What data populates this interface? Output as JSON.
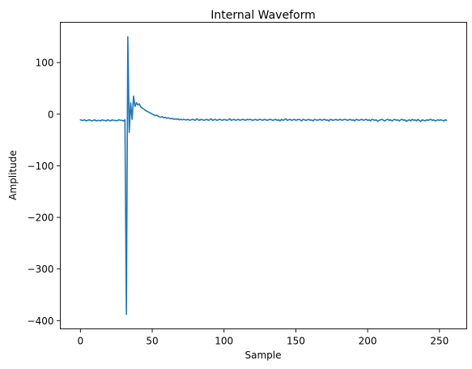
{
  "chart_data": {
    "type": "line",
    "title": "Internal Waveform",
    "xlabel": "Sample",
    "ylabel": "Amplitude",
    "xlim": [
      -14,
      269
    ],
    "ylim": [
      -416,
      178
    ],
    "grid": false,
    "legend": "none",
    "x_ticks": [
      0,
      50,
      100,
      150,
      200,
      250
    ],
    "y_ticks": [
      100,
      0,
      -100,
      -200,
      -300,
      -400
    ],
    "x_tick_labels": [
      "0",
      "50",
      "100",
      "150",
      "200",
      "250"
    ],
    "y_tick_labels": [
      "100",
      "0",
      "−100",
      "−200",
      "−300",
      "−400"
    ],
    "colors": {
      "series": "#1f77b4"
    },
    "series": [
      {
        "x_start": 0,
        "x_step": 1,
        "values": [
          -11,
          -12,
          -12,
          -11,
          -13,
          -12,
          -11,
          -12,
          -13,
          -12,
          -11,
          -13,
          -12,
          -12,
          -13,
          -11,
          -12,
          -12,
          -13,
          -11,
          -12,
          -13,
          -11,
          -12,
          -12,
          -13,
          -12,
          -11,
          -12,
          -12,
          -13,
          -11,
          -388,
          150,
          -35,
          22,
          -10,
          35,
          15,
          22,
          18,
          20,
          14,
          12,
          10,
          8,
          6,
          5,
          3,
          2,
          0,
          -1,
          -3,
          -2,
          -4,
          -5,
          -6,
          -5,
          -7,
          -6,
          -8,
          -7,
          -8,
          -9,
          -8,
          -10,
          -9,
          -10,
          -9,
          -11,
          -10,
          -11,
          -10,
          -11,
          -11,
          -10,
          -12,
          -11,
          -10,
          -11,
          -12,
          -9,
          -11,
          -12,
          -10,
          -11,
          -12,
          -11,
          -10,
          -12,
          -11,
          -9,
          -12,
          -11,
          -10,
          -12,
          -11,
          -10,
          -11,
          -12,
          -10,
          -11,
          -12,
          -11,
          -9,
          -12,
          -11,
          -10,
          -12,
          -11,
          -10,
          -12,
          -11,
          -10,
          -11,
          -12,
          -10,
          -11,
          -10,
          -11,
          -12,
          -11,
          -10,
          -12,
          -11,
          -10,
          -11,
          -12,
          -10,
          -11,
          -12,
          -11,
          -10,
          -11,
          -12,
          -11,
          -10,
          -12,
          -11,
          -13,
          -10,
          -12,
          -11,
          -9,
          -12,
          -11,
          -10,
          -12,
          -11,
          -10,
          -12,
          -11,
          -10,
          -11,
          -13,
          -10,
          -11,
          -12,
          -11,
          -10,
          -12,
          -11,
          -13,
          -10,
          -11,
          -12,
          -11,
          -10,
          -12,
          -11,
          -10,
          -12,
          -11,
          -13,
          -10,
          -11,
          -12,
          -11,
          -10,
          -12,
          -11,
          -10,
          -12,
          -11,
          -10,
          -11,
          -12,
          -11,
          -10,
          -12,
          -11,
          -13,
          -10,
          -11,
          -12,
          -11,
          -10,
          -12,
          -11,
          -10,
          -12,
          -11,
          -13,
          -10,
          -11,
          -12,
          -11,
          -14,
          -12,
          -11,
          -10,
          -12,
          -13,
          -11,
          -10,
          -12,
          -11,
          -13,
          -11,
          -10,
          -12,
          -11,
          -13,
          -11,
          -10,
          -12,
          -11,
          -14,
          -12,
          -11,
          -13,
          -10,
          -12,
          -11,
          -13,
          -10,
          -12,
          -14,
          -11,
          -12,
          -13,
          -11,
          -12,
          -11,
          -10,
          -12,
          -11,
          -13,
          -12,
          -11,
          -12,
          -11,
          -12,
          -13,
          -11,
          -12
        ]
      }
    ]
  }
}
